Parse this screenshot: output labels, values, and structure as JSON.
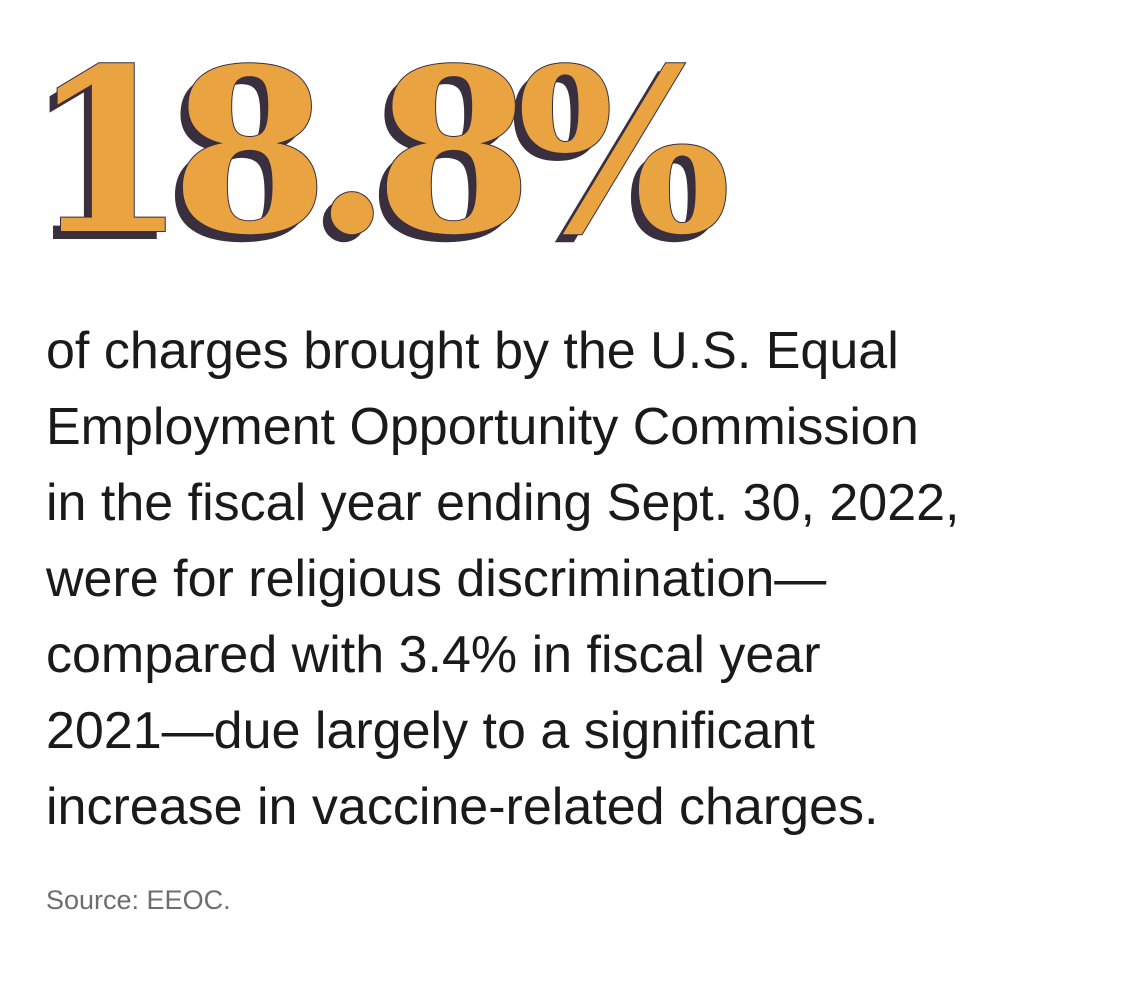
{
  "statistic": {
    "value": "18.8%"
  },
  "description": "of charges brought by the U.S. Equal\nEmployment Opportunity Commission\nin the fiscal year ending Sept. 30, 2022,\nwere for religious discrimination—\ncompared with 3.4% in fiscal year\n2021—due largely to a significant\nincrease in vaccine-related charges.",
  "source": "Source: EEOC.",
  "colors": {
    "stat_fill": "#eaa341",
    "stat_shadow": "#3a2f3e",
    "body_text": "#1a1a1a",
    "source_text": "#6e6e6e",
    "background": "#ffffff"
  }
}
